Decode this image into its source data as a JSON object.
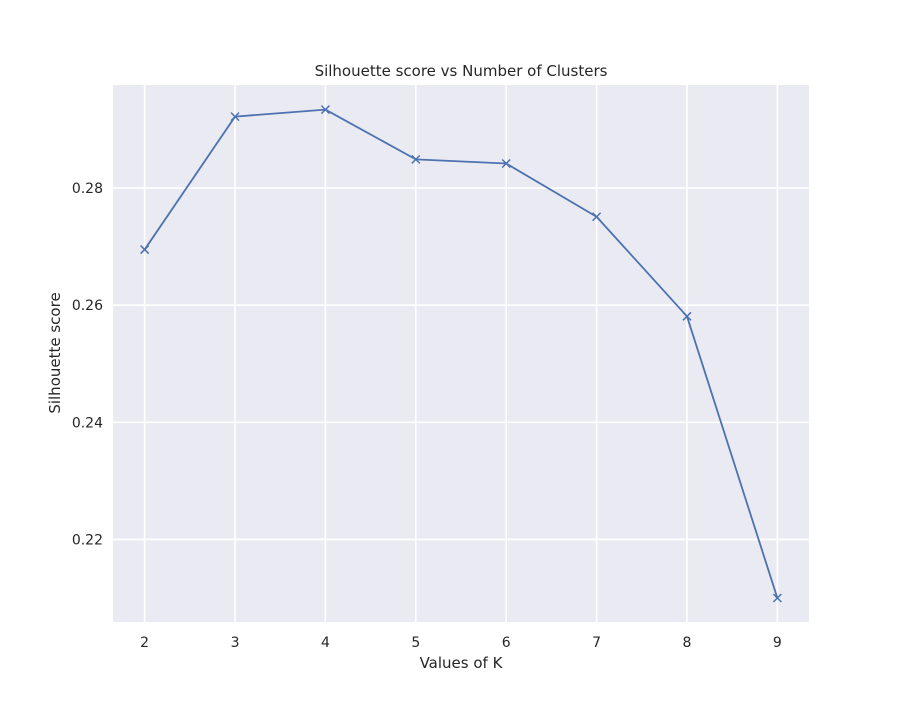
{
  "chart_data": {
    "type": "line",
    "title": "Silhouette score vs Number of Clusters",
    "xlabel": "Values of K",
    "ylabel": "Silhouette score",
    "x": [
      2,
      3,
      4,
      5,
      6,
      7,
      8,
      9
    ],
    "series": [
      {
        "values": [
          0.2695,
          0.2922,
          0.2934,
          0.2849,
          0.2842,
          0.2751,
          0.2581,
          0.21
        ],
        "marker": "x",
        "color": "#4c72b0"
      }
    ],
    "x_ticks": [
      "2",
      "3",
      "4",
      "5",
      "6",
      "7",
      "8",
      "9"
    ],
    "y_ticks": [
      "0.22",
      "0.24",
      "0.26",
      "0.28"
    ],
    "y_tick_values": [
      0.22,
      0.24,
      0.26,
      0.28
    ],
    "xlim": [
      1.65,
      9.35
    ],
    "ylim": [
      0.2059,
      0.2976
    ],
    "grid": true,
    "colors": {
      "plot_background": "#eaeaf2",
      "grid": "#ffffff",
      "line": "#4c72b0",
      "text": "#262626"
    }
  }
}
